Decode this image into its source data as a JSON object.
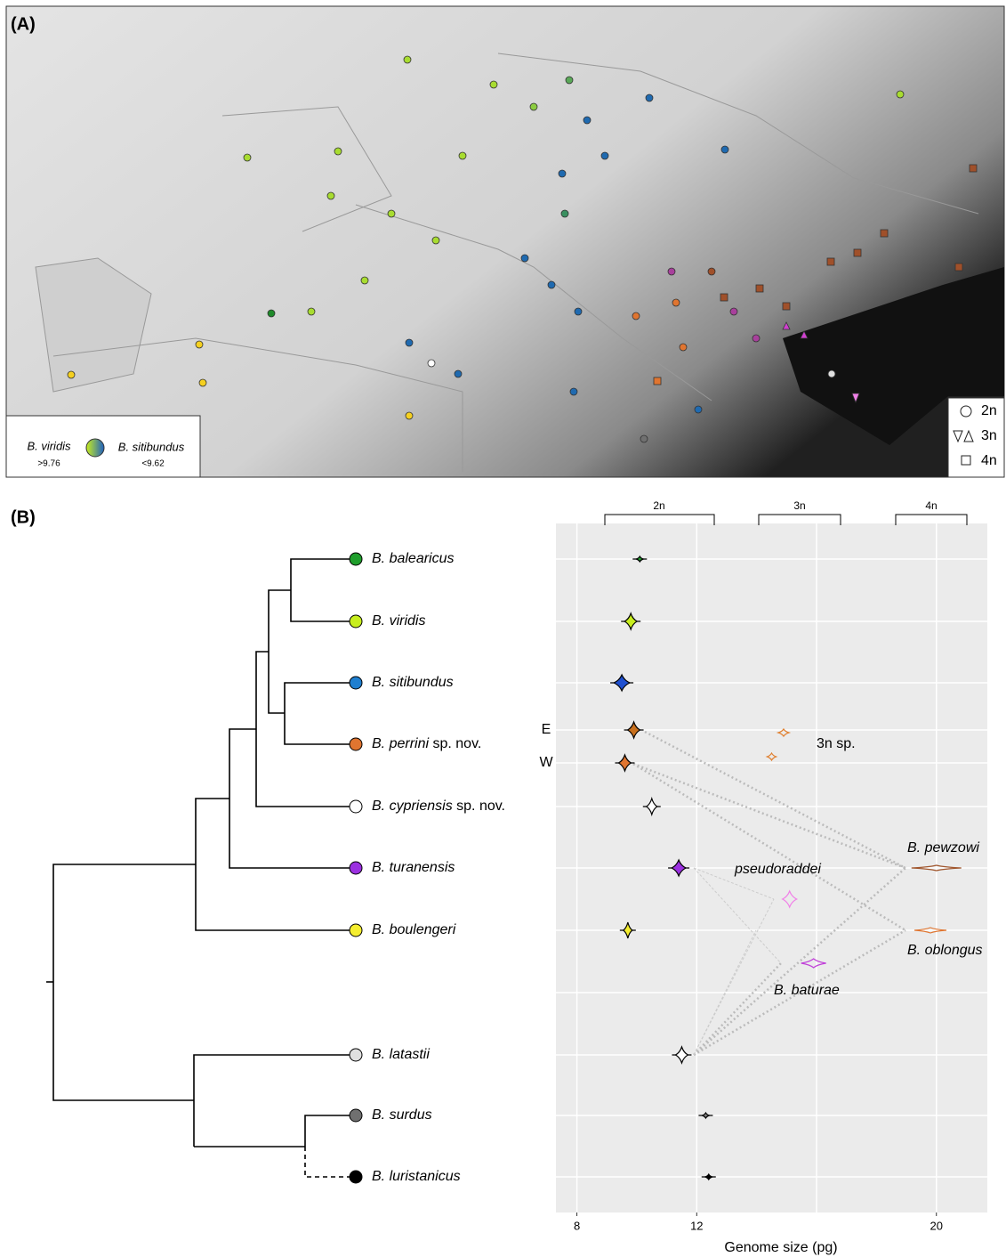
{
  "panel_a": {
    "label": "(A)",
    "gradient_left": "B. viridis",
    "gradient_left_value": ">9.76",
    "gradient_right": "B. sitibundus",
    "gradient_right_value": "<9.62",
    "ploidy_legend": [
      "2n",
      "3n",
      "4n"
    ]
  },
  "panel_b": {
    "label": "(B)",
    "tips": [
      {
        "name": "B. balearicus",
        "color": "#1f9e2c"
      },
      {
        "name": "B. viridis",
        "color": "#c8ee1e"
      },
      {
        "name": "B. sitibundus",
        "color": "#1f7fd0"
      },
      {
        "name": "B. perrini",
        "suffix": "sp. nov.",
        "color": "#e07530"
      },
      {
        "name": "B. cypriensis",
        "suffix": "sp. nov.",
        "color": "#ffffff"
      },
      {
        "name": "B. turanensis",
        "color": "#9b30e0"
      },
      {
        "name": "B. boulengeri",
        "color": "#f5ee30"
      },
      {
        "name": "B. latastii",
        "color": "#e0e0e0"
      },
      {
        "name": "B. surdus",
        "color": "#707070"
      },
      {
        "name": "B. luristanicus",
        "color": "#000000"
      }
    ]
  },
  "chart_data": {
    "type": "violin",
    "x_label": "Genome size (pg)",
    "xlim": [
      7.3,
      21.7
    ],
    "xticks": [
      8,
      12,
      20
    ],
    "xgrid": [
      8,
      12,
      16,
      20
    ],
    "facets": [
      "2n",
      "3n",
      "4n"
    ],
    "population_labels": [
      "E",
      "W"
    ],
    "diploid": [
      {
        "value": 10.1,
        "color": "#1f9e2c"
      },
      {
        "value": 9.8,
        "color": "#c8ee1e"
      },
      {
        "value": 9.5,
        "color": "#1f50d0"
      },
      {
        "value": 9.9,
        "color": "#c8701e"
      },
      {
        "value": 9.6,
        "color": "#e07530"
      },
      {
        "value": 10.5,
        "color": "#ffffff"
      },
      {
        "value": 11.4,
        "color": "#9b30e0"
      },
      {
        "value": 9.7,
        "color": "#f5ee30"
      },
      {
        "value": 11.5,
        "color": "#ffffff"
      },
      {
        "value": 12.3,
        "color": "#808080"
      },
      {
        "value": 12.4,
        "color": "#000000"
      }
    ],
    "polyploid": [
      {
        "name": "3n sp.",
        "values": [
          14.9,
          14.5
        ],
        "color": "#e08030"
      },
      {
        "name": "pseudoraddei",
        "values": [
          15.1
        ],
        "color": "#f080e8"
      },
      {
        "name": "B. baturae",
        "values": [
          15.9
        ],
        "color": "#c040d8"
      },
      {
        "name": "B. pewzowi",
        "values": [
          20.0
        ],
        "color": "#a0562d"
      },
      {
        "name": "B. oblongus",
        "values": [
          19.8
        ],
        "color": "#e07530"
      }
    ]
  }
}
